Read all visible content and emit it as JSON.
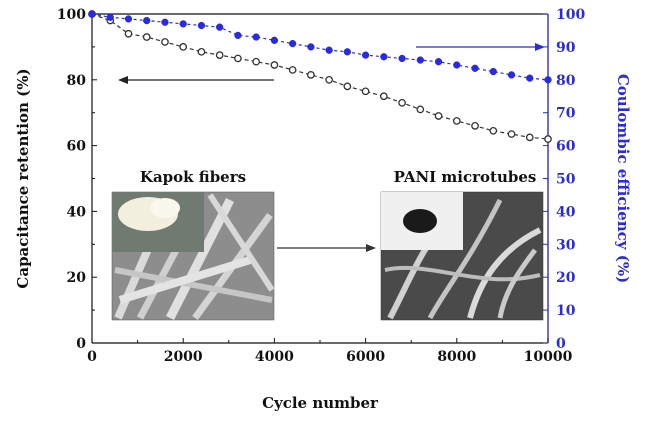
{
  "chart_data": {
    "type": "line",
    "xlabel": "Cycle number",
    "ylabel_left": "Capacitance retention (%)",
    "ylabel_right": "Coulombic efficiency (%)",
    "xlim": [
      0,
      10000
    ],
    "ylim_left": [
      0,
      100
    ],
    "ylim_right": [
      0,
      100
    ],
    "x_ticks": [
      "0",
      "2000",
      "4000",
      "6000",
      "8000",
      "10000"
    ],
    "y_left_ticks": [
      "0",
      "20",
      "40",
      "60",
      "80",
      "100"
    ],
    "y_right_ticks": [
      "0",
      "10",
      "20",
      "30",
      "40",
      "50",
      "60",
      "70",
      "80",
      "90",
      "100"
    ],
    "legend": "none",
    "grid": false,
    "series": [
      {
        "axis": "left",
        "color": "#333333",
        "marker": "open-circle",
        "x": [
          0,
          400,
          800,
          1200,
          1600,
          2000,
          2400,
          2800,
          3200,
          3600,
          4000,
          4400,
          4800,
          5200,
          5600,
          6000,
          6400,
          6800,
          7200,
          7600,
          8000,
          8400,
          8800,
          9200,
          9600,
          10000
        ],
        "values": [
          100,
          98,
          94,
          93,
          91.5,
          90,
          88.5,
          87.5,
          86.5,
          85.5,
          84.5,
          83,
          81.5,
          80,
          78,
          76.5,
          75,
          73,
          71,
          69,
          67.5,
          66,
          64.5,
          63.5,
          62.5,
          62
        ]
      },
      {
        "axis": "right",
        "color": "#2a2ae0",
        "marker": "filled-circle",
        "x": [
          0,
          400,
          800,
          1200,
          1600,
          2000,
          2400,
          2800,
          3200,
          3600,
          4000,
          4400,
          4800,
          5200,
          5600,
          6000,
          6400,
          6800,
          7200,
          7600,
          8000,
          8400,
          8800,
          9200,
          9600,
          10000
        ],
        "values": [
          100,
          99,
          98.5,
          98,
          97.5,
          97,
          96.5,
          96,
          93.5,
          93,
          92,
          91,
          90,
          89,
          88.5,
          87.5,
          87,
          86.5,
          86,
          85.5,
          84.5,
          83.5,
          82.5,
          81.5,
          80.5,
          80
        ]
      }
    ],
    "annotations": {
      "arrow_left_series": "points to left axis",
      "arrow_right_series": "points to right axis",
      "inset_left_label": "Kapok fibers",
      "inset_right_label": "PANI microtubes",
      "inset_arrow": "Kapok fibers to PANI microtubes"
    }
  }
}
